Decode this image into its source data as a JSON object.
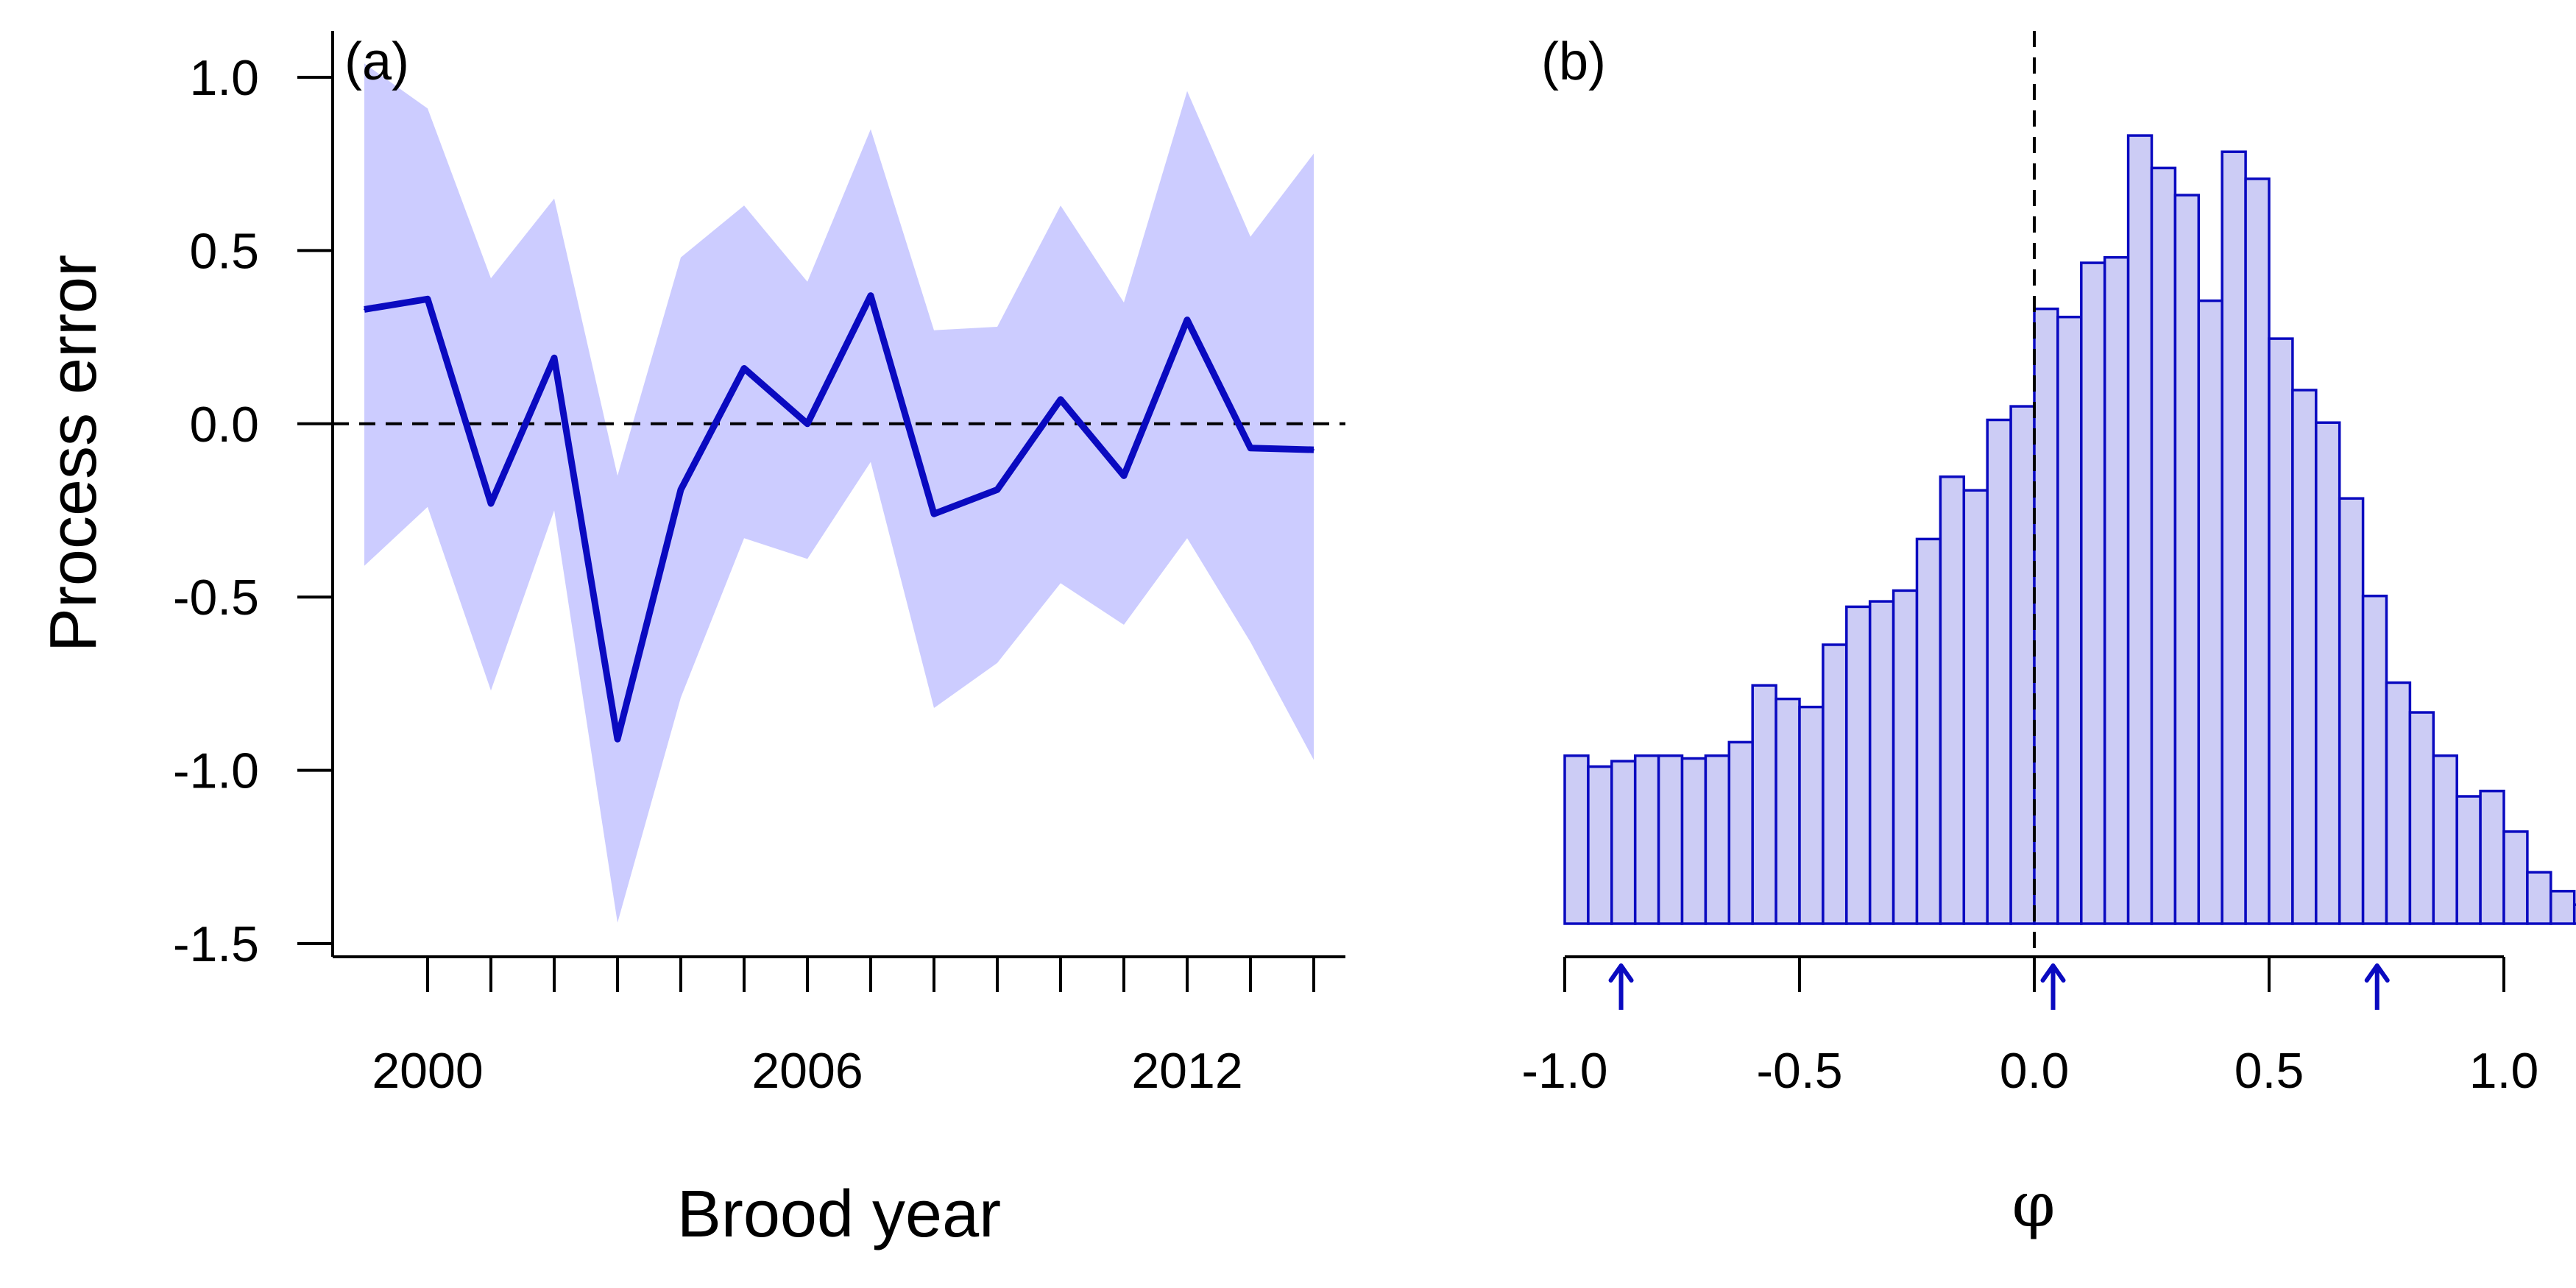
{
  "colors": {
    "line": "#0a0ac0",
    "band_fill": "#ccccff",
    "bar_fill": "#ccccf5",
    "bar_stroke": "#0a0ac0",
    "axis": "#000000"
  },
  "chart_data": [
    {
      "type": "line",
      "panel_label": "(a)",
      "xlabel": "Brood year",
      "ylabel": "Process error",
      "x": [
        1999,
        2000,
        2001,
        2002,
        2003,
        2004,
        2005,
        2006,
        2007,
        2008,
        2009,
        2010,
        2011,
        2012,
        2013,
        2014
      ],
      "series": [
        {
          "values": [
            0.33,
            0.36,
            -0.23,
            0.19,
            -0.91,
            -0.19,
            0.16,
            0.0,
            0.37,
            -0.26,
            -0.19,
            0.07,
            -0.15,
            0.3,
            -0.07,
            -0.075
          ]
        }
      ],
      "interval_lower": [
        -0.41,
        -0.24,
        -0.77,
        -0.25,
        -1.44,
        -0.79,
        -0.33,
        -0.39,
        -0.11,
        -0.82,
        -0.69,
        -0.46,
        -0.58,
        -0.33,
        -0.63,
        -0.97
      ],
      "interval_upper": [
        1.04,
        0.91,
        0.42,
        0.65,
        -0.15,
        0.48,
        0.63,
        0.41,
        0.85,
        0.27,
        0.28,
        0.63,
        0.35,
        0.96,
        0.54,
        0.78
      ],
      "reference_line_y": 0.0,
      "xlim": [
        1998.5,
        2014.5
      ],
      "ylim": [
        -1.5,
        1.0
      ],
      "x_ticks": [
        2000,
        2001,
        2002,
        2003,
        2004,
        2005,
        2006,
        2007,
        2008,
        2009,
        2010,
        2011,
        2012,
        2013,
        2014
      ],
      "x_tick_labels": [
        {
          "value": 2000,
          "label": "2000"
        },
        {
          "value": 2006,
          "label": "2006"
        },
        {
          "value": 2012,
          "label": "2012"
        }
      ],
      "y_ticks": [
        {
          "value": 1.0,
          "label": "1.0"
        },
        {
          "value": 0.5,
          "label": "0.5"
        },
        {
          "value": 0.0,
          "label": "0.0"
        },
        {
          "value": -0.5,
          "label": "-0.5"
        },
        {
          "value": -1.0,
          "label": "-1.0"
        },
        {
          "value": -1.5,
          "label": "-1.5"
        }
      ],
      "grid": false
    },
    {
      "type": "bar",
      "panel_label": "(b)",
      "xlabel": "φ",
      "bin_start": -1.0,
      "bin_width": 0.05,
      "values": [
        0.62,
        0.58,
        0.6,
        0.62,
        0.62,
        0.61,
        0.62,
        0.67,
        0.88,
        0.83,
        0.8,
        1.03,
        1.17,
        1.19,
        1.23,
        1.42,
        1.65,
        1.6,
        1.86,
        1.91,
        2.27,
        2.24,
        2.44,
        2.46,
        2.91,
        2.79,
        2.69,
        2.3,
        2.85,
        2.75,
        2.16,
        1.97,
        1.85,
        1.57,
        1.21,
        0.89,
        0.78,
        0.62,
        0.47,
        0.49,
        0.34,
        0.19,
        0.12,
        0.07
      ],
      "reference_line_x": 0.0,
      "arrows_x": [
        -0.88,
        0.04,
        0.73
      ],
      "xlim": [
        -1.0,
        1.0
      ],
      "x_ticks": [
        {
          "value": -1.0,
          "label": "-1.0"
        },
        {
          "value": -0.5,
          "label": "-0.5"
        },
        {
          "value": 0.0,
          "label": "0.0"
        },
        {
          "value": 0.5,
          "label": "0.5"
        },
        {
          "value": 1.0,
          "label": "1.0"
        }
      ],
      "y_axis_shown": false,
      "grid": false
    }
  ]
}
